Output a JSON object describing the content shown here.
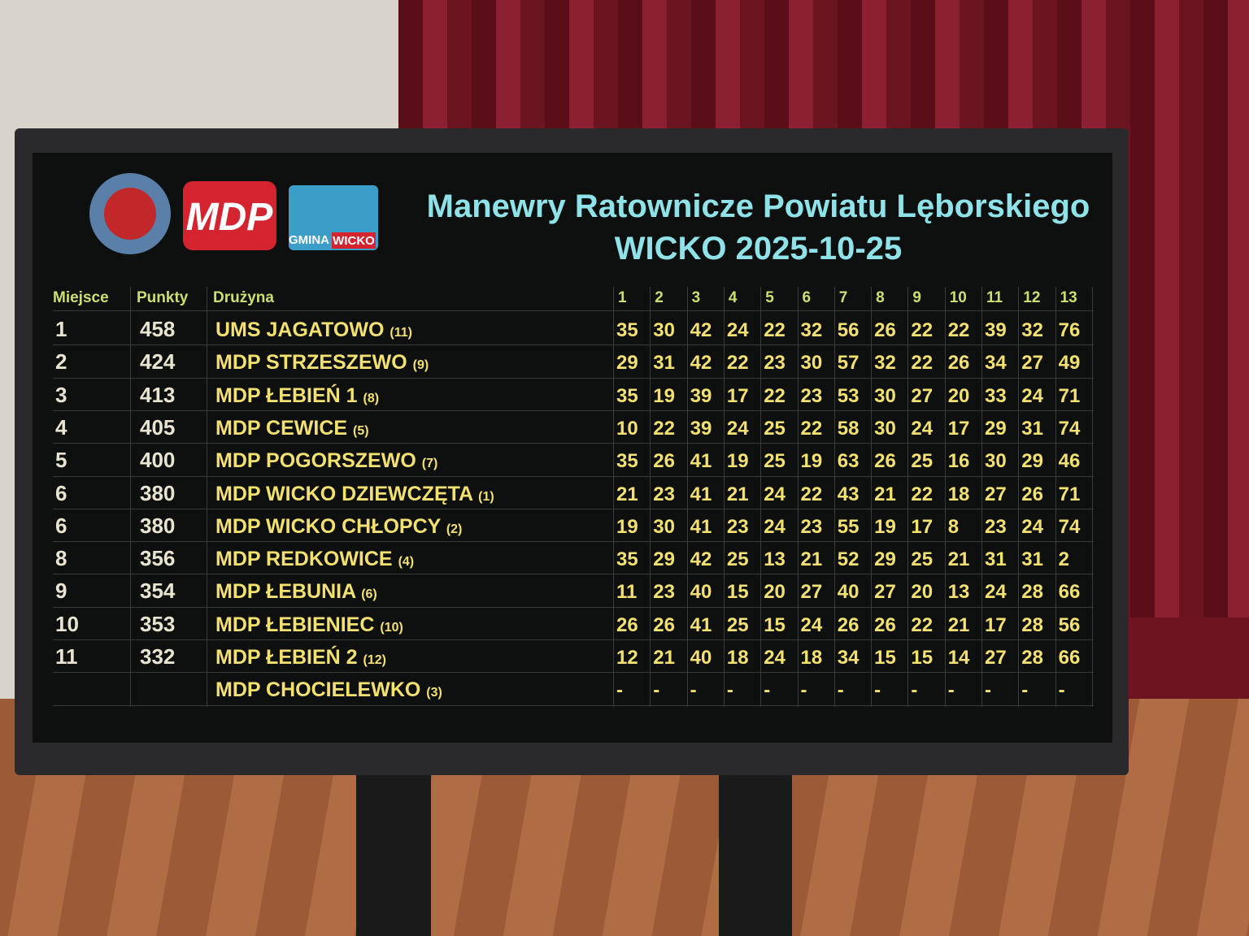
{
  "logos": {
    "mdp": "MDP",
    "gmina": "GMINA",
    "wicko": "WICKO"
  },
  "header": {
    "title": "Manewry Ratownicze Powiatu Lęborskiego",
    "subtitle": "WICKO 2025-10-25"
  },
  "table": {
    "columns": [
      "Miejsce",
      "Punkty",
      "Drużyna"
    ],
    "rounds": [
      1,
      2,
      3,
      4,
      5,
      6,
      7,
      8,
      9,
      10,
      11,
      12,
      13
    ],
    "rows": [
      {
        "place": 1,
        "points": 458,
        "team": "UMS JAGATOWO",
        "number": "(11)",
        "scores": [
          35,
          30,
          42,
          24,
          22,
          32,
          56,
          26,
          22,
          22,
          39,
          32,
          76
        ]
      },
      {
        "place": 2,
        "points": 424,
        "team": "MDP STRZESZEWO",
        "number": "(9)",
        "scores": [
          29,
          31,
          42,
          22,
          23,
          30,
          57,
          32,
          22,
          26,
          34,
          27,
          49
        ]
      },
      {
        "place": 3,
        "points": 413,
        "team": "MDP ŁEBIEŃ 1",
        "number": "(8)",
        "scores": [
          35,
          19,
          39,
          17,
          22,
          23,
          53,
          30,
          27,
          20,
          33,
          24,
          71
        ]
      },
      {
        "place": 4,
        "points": 405,
        "team": "MDP CEWICE",
        "number": "(5)",
        "scores": [
          10,
          22,
          39,
          24,
          25,
          22,
          58,
          30,
          24,
          17,
          29,
          31,
          74
        ]
      },
      {
        "place": 5,
        "points": 400,
        "team": "MDP POGORSZEWO",
        "number": "(7)",
        "scores": [
          35,
          26,
          41,
          19,
          25,
          19,
          63,
          26,
          25,
          16,
          30,
          29,
          46
        ]
      },
      {
        "place": 6,
        "points": 380,
        "team": "MDP WICKO DZIEWCZĘTA",
        "number": "(1)",
        "scores": [
          21,
          23,
          41,
          21,
          24,
          22,
          43,
          21,
          22,
          18,
          27,
          26,
          71
        ]
      },
      {
        "place": 6,
        "points": 380,
        "team": "MDP WICKO CHŁOPCY",
        "number": "(2)",
        "scores": [
          19,
          30,
          41,
          23,
          24,
          23,
          55,
          19,
          17,
          8,
          23,
          24,
          74
        ]
      },
      {
        "place": 8,
        "points": 356,
        "team": "MDP REDKOWICE",
        "number": "(4)",
        "scores": [
          35,
          29,
          42,
          25,
          13,
          21,
          52,
          29,
          25,
          21,
          31,
          31,
          2
        ]
      },
      {
        "place": 9,
        "points": 354,
        "team": "MDP ŁEBUNIA",
        "number": "(6)",
        "scores": [
          11,
          23,
          40,
          15,
          20,
          27,
          40,
          27,
          20,
          13,
          24,
          28,
          66
        ]
      },
      {
        "place": 10,
        "points": 353,
        "team": "MDP ŁEBIENIEC",
        "number": "(10)",
        "scores": [
          26,
          26,
          41,
          25,
          15,
          24,
          26,
          26,
          22,
          21,
          17,
          28,
          56
        ]
      },
      {
        "place": 11,
        "points": 332,
        "team": "MDP ŁEBIEŃ 2",
        "number": "(12)",
        "scores": [
          12,
          21,
          40,
          18,
          24,
          18,
          34,
          15,
          15,
          14,
          27,
          28,
          66
        ]
      },
      {
        "place": null,
        "points": null,
        "team": "MDP CHOCIELEWKO",
        "number": "(3)",
        "scores": [
          "-",
          "-",
          "-",
          "-",
          "-",
          "-",
          "-",
          "-",
          "-",
          "-",
          "-",
          "-",
          "-"
        ]
      }
    ]
  }
}
